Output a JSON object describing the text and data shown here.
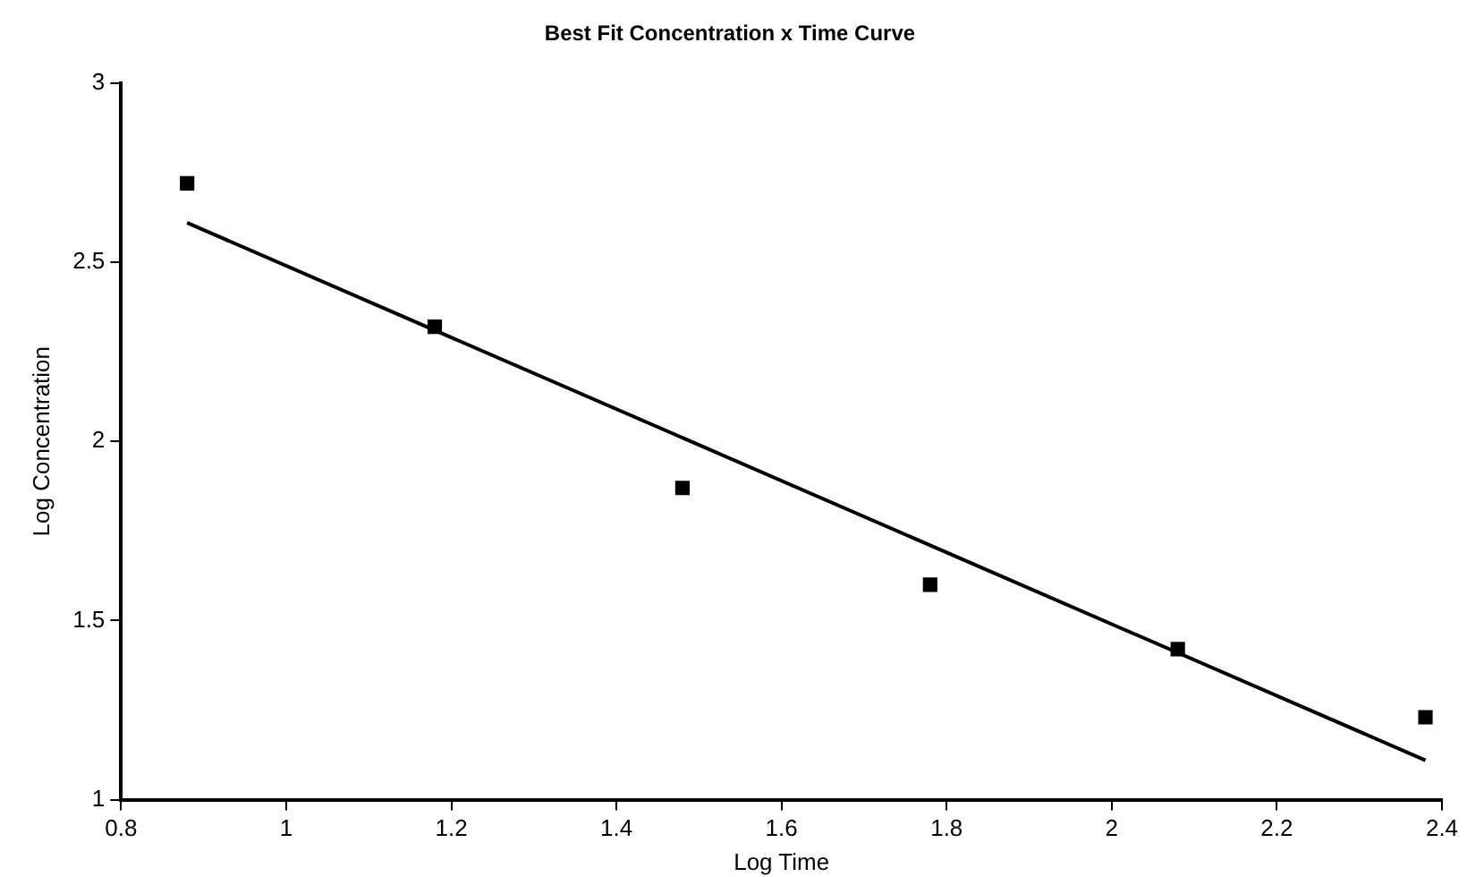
{
  "chart_data": {
    "type": "scatter",
    "title": "Best Fit Concentration x Time Curve",
    "xlabel": "Log Time",
    "ylabel": "Log Concentration",
    "series": [
      {
        "type": "scatter",
        "color": "#000000",
        "x": [
          0.88,
          1.18,
          1.48,
          1.78,
          2.08,
          2.38
        ],
        "values": [
          2.72,
          2.32,
          1.87,
          1.6,
          1.42,
          1.23
        ],
        "marker": "square"
      },
      {
        "type": "line",
        "color": "#000000",
        "x": [
          0.88,
          2.38
        ],
        "values": [
          2.61,
          1.11
        ],
        "marker": "none",
        "line_style": "solid"
      }
    ],
    "xlim": [
      0.8,
      2.4
    ],
    "xticks": [
      0.8,
      1,
      1.2,
      1.4,
      1.6,
      1.8,
      2,
      2.2,
      2.4
    ],
    "ylim": [
      1,
      3
    ],
    "yticks": [
      1,
      1.5,
      2,
      2.5,
      3
    ],
    "grid": false,
    "legend": false
  }
}
